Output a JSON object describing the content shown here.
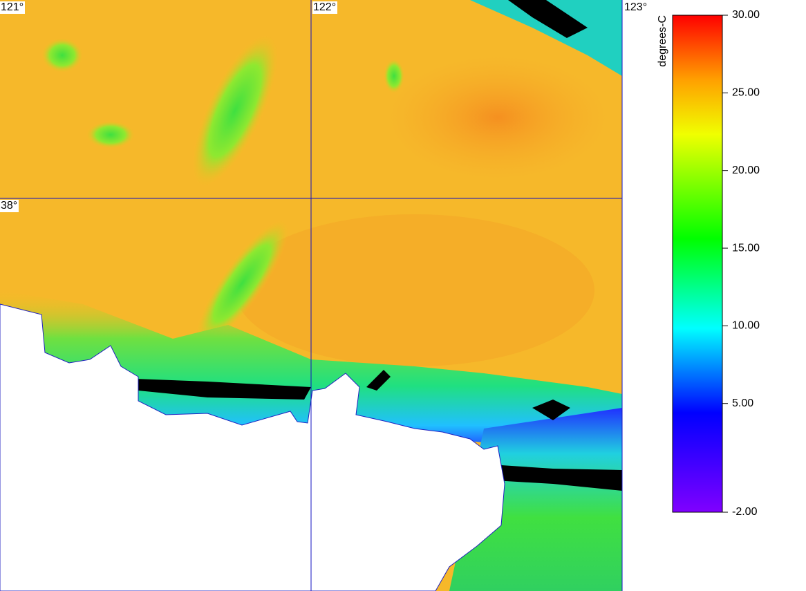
{
  "map": {
    "longitude_labels": [
      "121°",
      "122°",
      "123°"
    ],
    "latitude_labels": [
      "38°"
    ],
    "colorbar": {
      "title": "degrees-C",
      "range": [
        -2,
        30
      ],
      "ticks": [
        {
          "value": 30,
          "label": "30.00"
        },
        {
          "value": 25,
          "label": "25.00"
        },
        {
          "value": 20,
          "label": "20.00"
        },
        {
          "value": 15,
          "label": "15.00"
        },
        {
          "value": 10,
          "label": "10.00"
        },
        {
          "value": 5,
          "label": "5.00"
        },
        {
          "value": -2,
          "label": "-2.00"
        }
      ]
    }
  }
}
